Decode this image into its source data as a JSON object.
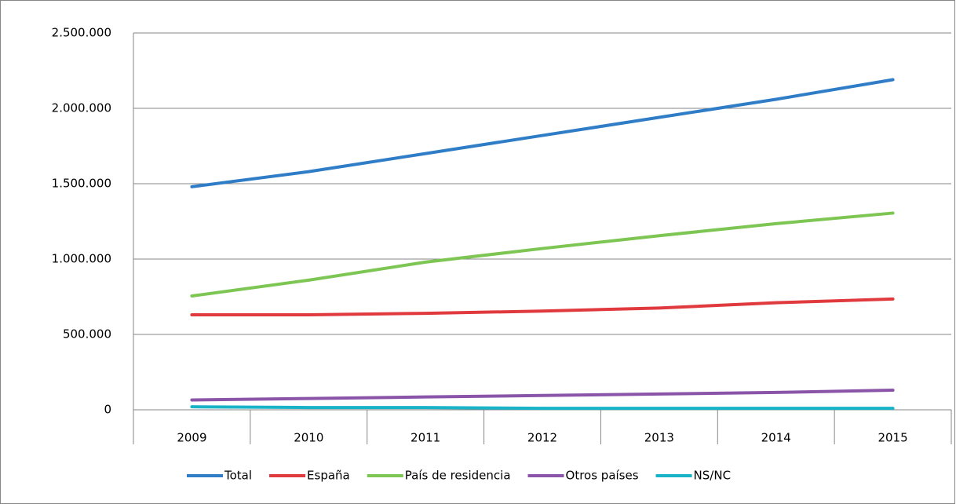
{
  "chart_data": {
    "type": "line",
    "categories": [
      "2009",
      "2010",
      "2011",
      "2012",
      "2013",
      "2014",
      "2015"
    ],
    "series": [
      {
        "name": "Total",
        "color": "#2f7dc6",
        "values": [
          1480000,
          1580000,
          1700000,
          1820000,
          1940000,
          2060000,
          2190000
        ]
      },
      {
        "name": "España",
        "color": "#e0393e",
        "values": [
          630000,
          630000,
          640000,
          655000,
          675000,
          710000,
          735000
        ]
      },
      {
        "name": "País de residencia",
        "color": "#7dc653",
        "values": [
          755000,
          860000,
          980000,
          1070000,
          1155000,
          1235000,
          1305000
        ]
      },
      {
        "name": "Otros países",
        "color": "#8a55a8",
        "values": [
          65000,
          75000,
          85000,
          95000,
          105000,
          115000,
          130000
        ]
      },
      {
        "name": "NS/NC",
        "color": "#19b3c8",
        "values": [
          20000,
          15000,
          15000,
          10000,
          10000,
          10000,
          10000
        ]
      }
    ],
    "ylim": [
      0,
      2500000
    ],
    "yticks": [
      0,
      {
        "value": 500000,
        "label": "500.000"
      },
      {
        "value": 1000000,
        "label": "1.000.000"
      },
      {
        "value": 1500000,
        "label": "1.500.000"
      },
      {
        "value": 2000000,
        "label": "2.000.000"
      },
      {
        "value": 2500000,
        "label": "2.500.000"
      }
    ],
    "grid": true,
    "legend": "bottom"
  }
}
